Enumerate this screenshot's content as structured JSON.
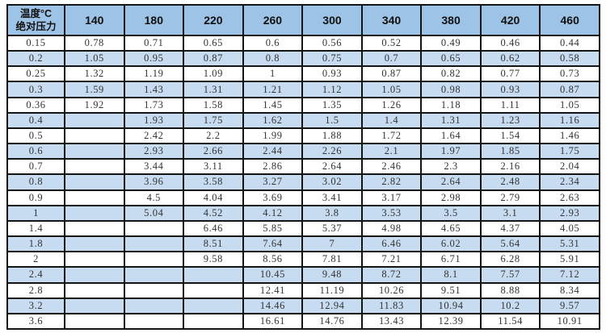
{
  "colors": {
    "header_bg": "#9DC3E6",
    "stripe_bg": "#C7DBF1",
    "row_bg": "#FFFFFF",
    "border": "#141414",
    "text": "#333333"
  },
  "table": {
    "header": {
      "corner_top": "温度°C",
      "corner_bottom": "绝对压力",
      "columns": [
        "140",
        "180",
        "220",
        "260",
        "300",
        "340",
        "380",
        "420",
        "460"
      ]
    },
    "rows": [
      {
        "label": "0.15",
        "values": [
          "0.78",
          "0.71",
          "0.65",
          "0.6",
          "0.56",
          "0.52",
          "0.49",
          "0.46",
          "0.44"
        ]
      },
      {
        "label": "0.2",
        "values": [
          "1.05",
          "0.95",
          "0.87",
          "0.8",
          "0.75",
          "0.7",
          "0.65",
          "0.62",
          "0.58"
        ]
      },
      {
        "label": "0.25",
        "values": [
          "1.32",
          "1.19",
          "1.09",
          "1",
          "0.93",
          "0.87",
          "0.82",
          "0.77",
          "0.73"
        ]
      },
      {
        "label": "0.3",
        "values": [
          "1.59",
          "1.43",
          "1.31",
          "1.21",
          "1.12",
          "1.05",
          "0.98",
          "0.93",
          "0.87"
        ]
      },
      {
        "label": "0.36",
        "values": [
          "1.92",
          "1.73",
          "1.58",
          "1.45",
          "1.35",
          "1.26",
          "1.18",
          "1.11",
          "1.05"
        ]
      },
      {
        "label": "0.4",
        "values": [
          "",
          "1.93",
          "1.75",
          "1.62",
          "1.5",
          "1.4",
          "1.31",
          "1.23",
          "1.16"
        ]
      },
      {
        "label": "0.5",
        "values": [
          "",
          "2.42",
          "2.2",
          "1.99",
          "1.88",
          "1.72",
          "1.64",
          "1.54",
          "1.46"
        ]
      },
      {
        "label": "0.6",
        "values": [
          "",
          "2.93",
          "2.66",
          "2.44",
          "2.26",
          "2.1",
          "1.97",
          "1.85",
          "1.75"
        ]
      },
      {
        "label": "0.7",
        "values": [
          "",
          "3.44",
          "3.11",
          "2.86",
          "2.64",
          "2.46",
          "2.3",
          "2.16",
          "2.04"
        ]
      },
      {
        "label": "0.8",
        "values": [
          "",
          "3.96",
          "3.58",
          "3.27",
          "3.02",
          "2.82",
          "2.64",
          "2.48",
          "2.34"
        ]
      },
      {
        "label": "0.9",
        "values": [
          "",
          "4.5",
          "4.04",
          "3.69",
          "3.41",
          "3.17",
          "2.98",
          "2.79",
          "2.63"
        ]
      },
      {
        "label": "1",
        "values": [
          "",
          "5.04",
          "4.52",
          "4.12",
          "3.8",
          "3.53",
          "3.5",
          "3.1",
          "2.93"
        ]
      },
      {
        "label": "1.4",
        "values": [
          "",
          "",
          "6.46",
          "5.85",
          "5.37",
          "4.98",
          "4.65",
          "4.37",
          "4.05"
        ]
      },
      {
        "label": "1.8",
        "values": [
          "",
          "",
          "8.51",
          "7.64",
          "7",
          "6.46",
          "6.02",
          "5.64",
          "5.31"
        ]
      },
      {
        "label": "2",
        "values": [
          "",
          "",
          "9.58",
          "8.56",
          "7.81",
          "7.21",
          "6.71",
          "6.28",
          "5.91"
        ]
      },
      {
        "label": "2.4",
        "values": [
          "",
          "",
          "",
          "10.45",
          "9.48",
          "8.72",
          "8.1",
          "7.57",
          "7.12"
        ]
      },
      {
        "label": "2.8",
        "values": [
          "",
          "",
          "",
          "12.41",
          "11.19",
          "10.26",
          "9.51",
          "8.88",
          "8.34"
        ]
      },
      {
        "label": "3.2",
        "values": [
          "",
          "",
          "",
          "14.46",
          "12.94",
          "11.83",
          "10.94",
          "10.2",
          "9.57"
        ]
      },
      {
        "label": "3.6",
        "values": [
          "",
          "",
          "",
          "16.61",
          "14.76",
          "13.43",
          "12.39",
          "11.54",
          "10.91"
        ]
      }
    ]
  }
}
